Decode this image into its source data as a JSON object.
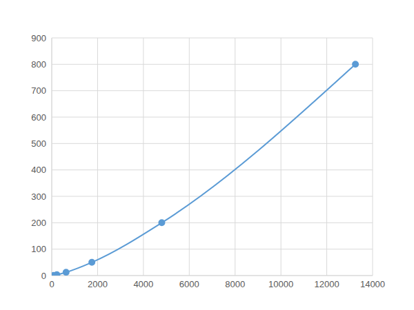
{
  "chart_data": {
    "type": "line",
    "x": [
      80,
      223,
      625,
      1750,
      4800,
      13250
    ],
    "values": [
      0.8,
      3.1,
      12.5,
      50,
      200,
      800
    ],
    "color": "#5b9bd5",
    "marker": "circle",
    "line_style": "smooth",
    "xlim": [
      0,
      14000
    ],
    "xticks": [
      0,
      2000,
      4000,
      6000,
      8000,
      10000,
      12000,
      14000
    ],
    "ylim": [
      0,
      900
    ],
    "yticks": [
      0,
      100,
      200,
      300,
      400,
      500,
      600,
      700,
      800,
      900
    ],
    "grid": true
  }
}
